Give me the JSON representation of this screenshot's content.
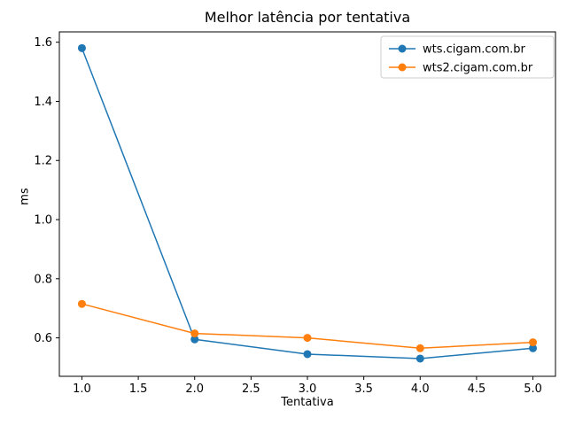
{
  "chart_data": {
    "type": "line",
    "title": "Melhor latência por tentativa",
    "xlabel": "Tentativa",
    "ylabel": "ms",
    "x": [
      1,
      2,
      3,
      4,
      5
    ],
    "series": [
      {
        "name": "wts.cigam.com.br",
        "color": "#1f77b4",
        "values": [
          1.58,
          0.595,
          0.545,
          0.53,
          0.565
        ]
      },
      {
        "name": "wts2.cigam.com.br",
        "color": "#ff7f0e",
        "values": [
          0.715,
          0.615,
          0.6,
          0.565,
          0.585
        ]
      }
    ],
    "xlim": [
      0.8,
      5.2
    ],
    "ylim": [
      0.47,
      1.635
    ],
    "xticks": [
      1.0,
      1.5,
      2.0,
      2.5,
      3.0,
      3.5,
      4.0,
      4.5,
      5.0
    ],
    "yticks": [
      0.6,
      0.8,
      1.0,
      1.2,
      1.4,
      1.6
    ],
    "grid": false,
    "legend_position": "upper right",
    "marker": "o",
    "line_color_1": "#1f77b4",
    "line_color_2": "#ff7f0e",
    "axis_color": "#000000",
    "legend_border_color": "#cccccc",
    "background_color": "#ffffff"
  }
}
